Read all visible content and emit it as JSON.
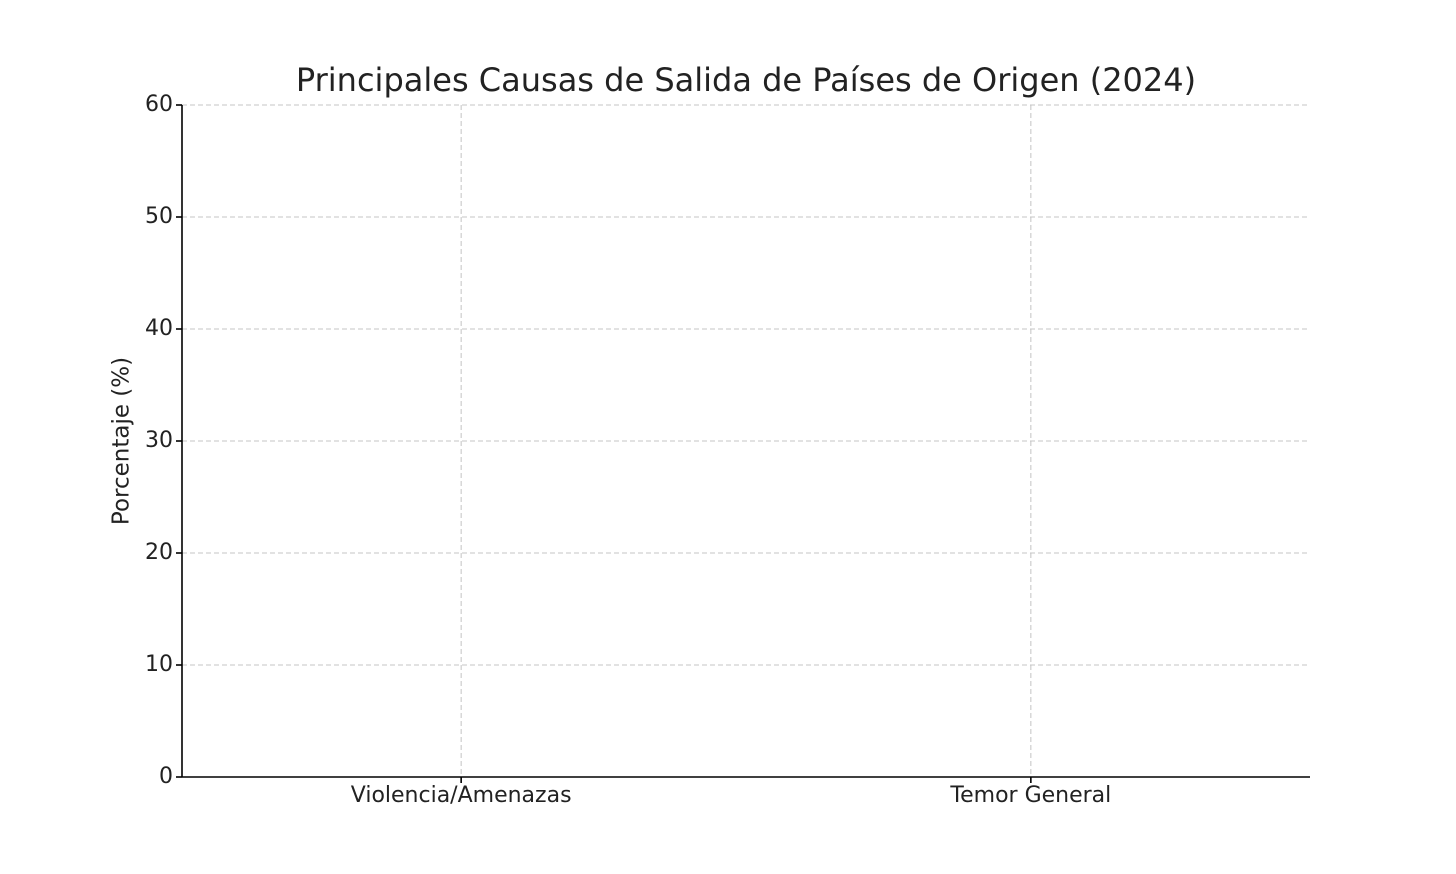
{
  "chart_data": {
    "type": "bar",
    "title": "Principales Causas de Salida de Países de Origen (2024)",
    "y_label": "Porcentaje (%)",
    "categories": [
      "Violencia/Amenazas",
      "Temor General"
    ],
    "ylim": [
      0,
      60
    ],
    "yticks": [
      0,
      10,
      20,
      30,
      40,
      50,
      60
    ],
    "grid": true
  }
}
